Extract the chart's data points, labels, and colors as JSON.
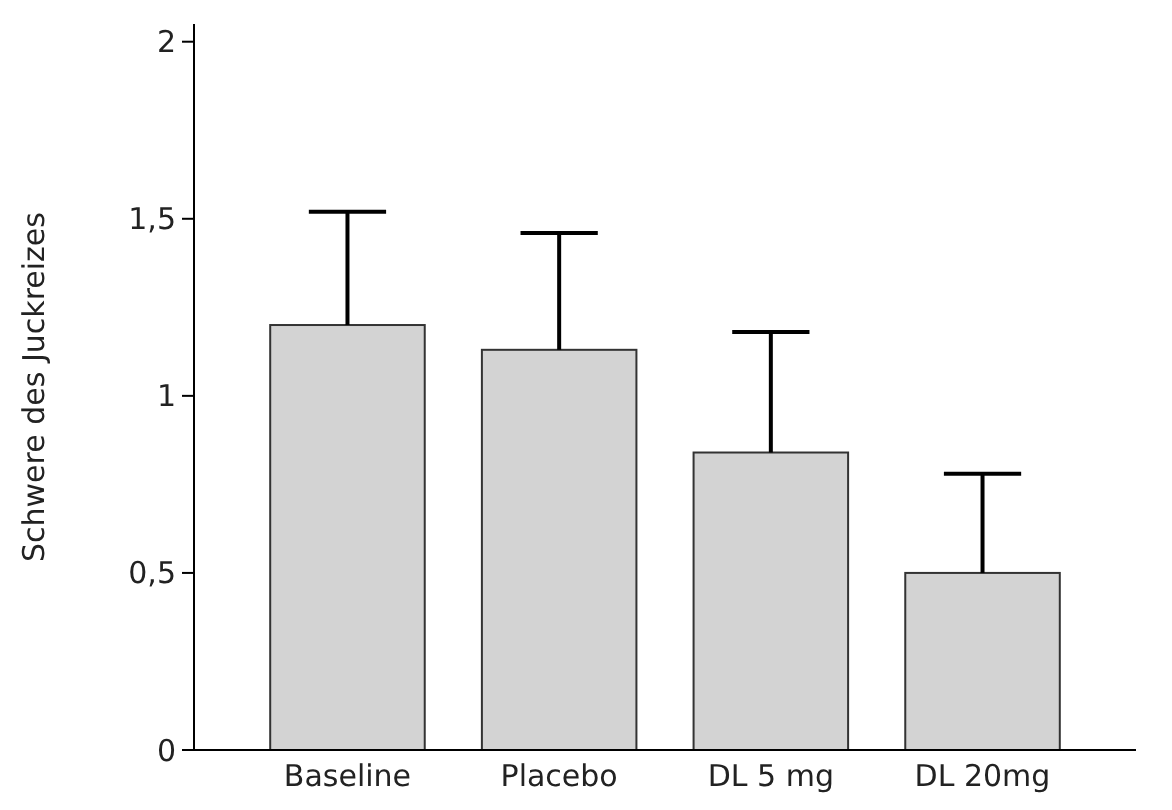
{
  "chart_data": {
    "type": "bar",
    "ylabel": "Schwere des Juckreizes",
    "categories": [
      "Baseline",
      "Placebo",
      "DL 5 mg",
      "DL 20mg"
    ],
    "values": [
      1.2,
      1.13,
      0.84,
      0.5
    ],
    "errors": [
      [
        1.2,
        1.52
      ],
      [
        1.13,
        1.46
      ],
      [
        0.84,
        1.18
      ],
      [
        0.5,
        0.78
      ]
    ],
    "color": "#d3d3d3",
    "ylim": [
      0,
      2.05
    ],
    "yticks": [
      0,
      {
        "value": 0.5,
        "label": "0,5"
      },
      1,
      {
        "value": 1.5,
        "label": "1,5"
      },
      2
    ],
    "grid": false
  }
}
